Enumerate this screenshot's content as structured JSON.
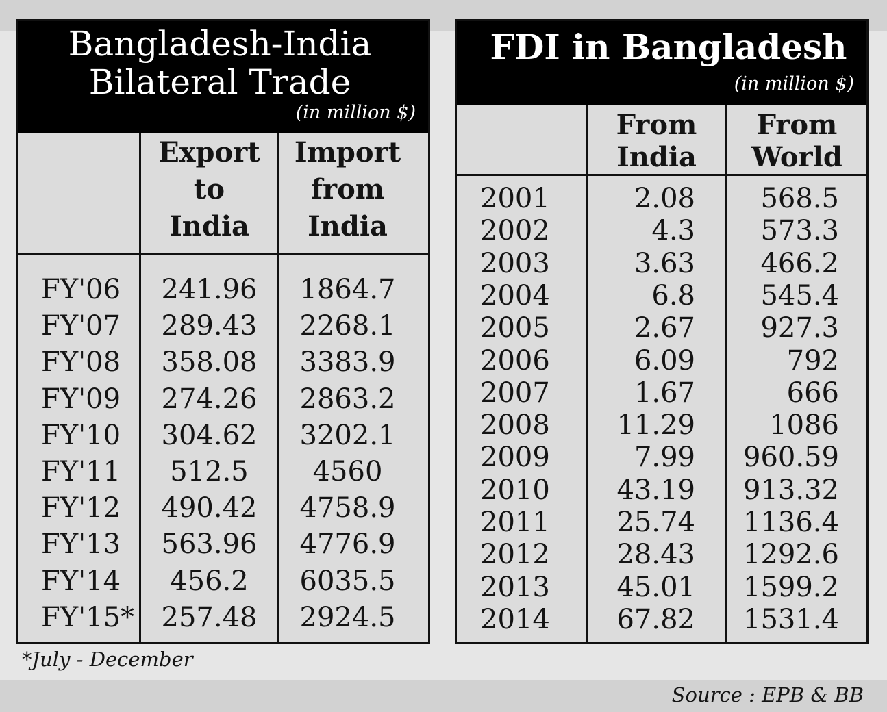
{
  "chart_data": [
    {
      "type": "table",
      "title_lines": [
        "Bangladesh-India",
        "Bilateral Trade"
      ],
      "unit": "(in million $)",
      "columns": [
        {
          "label_lines": [
            "Export",
            "to",
            "India"
          ]
        },
        {
          "label_lines": [
            "Import",
            "from",
            "India"
          ]
        }
      ],
      "rows": [
        {
          "label": "FY'06",
          "values": [
            "241.96",
            "1864.7"
          ]
        },
        {
          "label": "FY'07",
          "values": [
            "289.43",
            "2268.1"
          ]
        },
        {
          "label": "FY'08",
          "values": [
            "358.08",
            "3383.9"
          ]
        },
        {
          "label": "FY'09",
          "values": [
            "274.26",
            "2863.2"
          ]
        },
        {
          "label": "FY'10",
          "values": [
            "304.62",
            "3202.1"
          ]
        },
        {
          "label": "FY'11",
          "values": [
            "512.5",
            "4560"
          ]
        },
        {
          "label": "FY'12",
          "values": [
            "490.42",
            "4758.9"
          ]
        },
        {
          "label": "FY'13",
          "values": [
            "563.96",
            "4776.9"
          ]
        },
        {
          "label": "FY'14",
          "values": [
            "456.2",
            "6035.5"
          ]
        },
        {
          "label": "FY'15*",
          "values": [
            "257.48",
            "2924.5"
          ]
        }
      ]
    },
    {
      "type": "table",
      "title": "FDI in Bangladesh",
      "unit": "(in million $)",
      "columns": [
        {
          "label_lines": [
            "From",
            "India"
          ]
        },
        {
          "label_lines": [
            "From",
            "World"
          ]
        }
      ],
      "rows": [
        {
          "label": "2001",
          "values": [
            "2.08",
            "568.5"
          ]
        },
        {
          "label": "2002",
          "values": [
            "4.3",
            "573.3"
          ]
        },
        {
          "label": "2003",
          "values": [
            "3.63",
            "466.2"
          ]
        },
        {
          "label": "2004",
          "values": [
            "6.8",
            "545.4"
          ]
        },
        {
          "label": "2005",
          "values": [
            "2.67",
            "927.3"
          ]
        },
        {
          "label": "2006",
          "values": [
            "6.09",
            "792"
          ]
        },
        {
          "label": "2007",
          "values": [
            "1.67",
            "666"
          ]
        },
        {
          "label": "2008",
          "values": [
            "11.29",
            "1086"
          ]
        },
        {
          "label": "2009",
          "values": [
            "7.99",
            "960.59"
          ]
        },
        {
          "label": "2010",
          "values": [
            "43.19",
            "913.32"
          ]
        },
        {
          "label": "2011",
          "values": [
            "25.74",
            "1136.4"
          ]
        },
        {
          "label": "2012",
          "values": [
            "28.43",
            "1292.6"
          ]
        },
        {
          "label": "2013",
          "values": [
            "45.01",
            "1599.2"
          ]
        },
        {
          "label": "2014",
          "values": [
            "67.82",
            "1531.4"
          ]
        }
      ]
    }
  ],
  "footnote": "*July - December",
  "source": "Source : EPB & BB"
}
